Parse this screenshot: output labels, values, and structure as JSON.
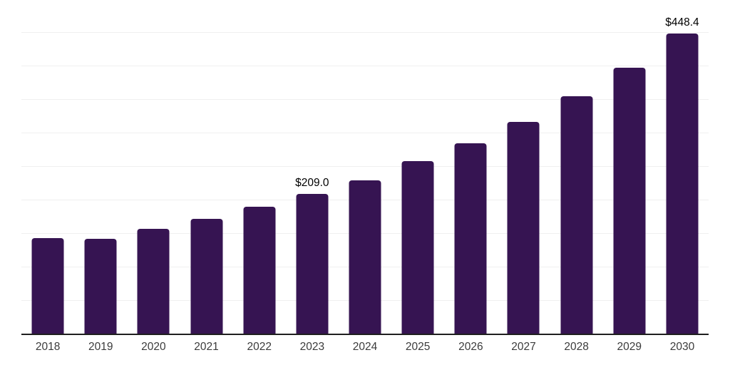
{
  "chart_data": {
    "type": "bar",
    "title": "",
    "xlabel": "",
    "ylabel": "",
    "categories": [
      "2018",
      "2019",
      "2020",
      "2021",
      "2022",
      "2023",
      "2024",
      "2025",
      "2026",
      "2027",
      "2028",
      "2029",
      "2030"
    ],
    "values": [
      143.0,
      141.0,
      156.0,
      171.0,
      189.0,
      209.0,
      229.0,
      257.0,
      284.0,
      316.0,
      354.0,
      397.0,
      448.4
    ],
    "value_labels": [
      null,
      null,
      null,
      null,
      null,
      "$209.0",
      null,
      null,
      null,
      null,
      null,
      null,
      "$448.4"
    ],
    "ylim": [
      0,
      500
    ],
    "grid_interval": 50,
    "grid": true,
    "legend": false,
    "colors": {
      "bar": "#361452",
      "gridline": "#f0f0f0",
      "axis_line": "#1f1f1f",
      "tick_label": "#3b3b3b",
      "data_label": "#000000",
      "background": "#ffffff"
    }
  }
}
